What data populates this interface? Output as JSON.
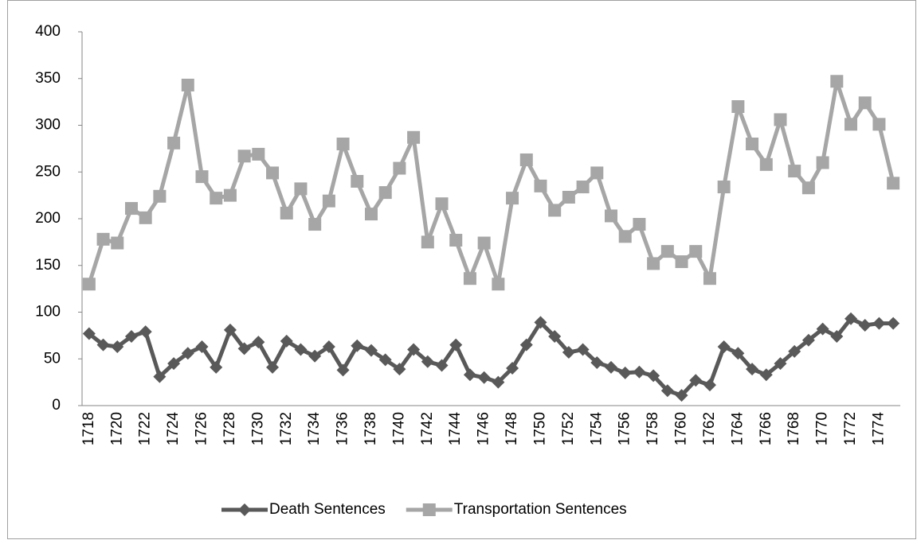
{
  "chart_data": {
    "type": "line",
    "categories": [
      1718,
      null,
      1720,
      null,
      1722,
      null,
      1724,
      null,
      1726,
      null,
      1728,
      null,
      1730,
      null,
      1732,
      null,
      1734,
      null,
      1736,
      null,
      1738,
      null,
      1740,
      null,
      1742,
      null,
      1744,
      null,
      1746,
      null,
      1748,
      null,
      1750,
      null,
      1752,
      null,
      1754,
      null,
      1756,
      null,
      1758,
      null,
      1760,
      null,
      1762,
      null,
      1764,
      null,
      1766,
      null,
      1768,
      null,
      1770,
      null,
      1772,
      null,
      1774,
      null
    ],
    "series": [
      {
        "name": "Death Sentences",
        "color": "#595959",
        "marker": "diamond",
        "values": [
          77,
          65,
          63,
          74,
          79,
          31,
          45,
          56,
          63,
          41,
          81,
          61,
          68,
          41,
          69,
          60,
          53,
          63,
          38,
          64,
          59,
          49,
          39,
          60,
          47,
          43,
          65,
          33,
          30,
          25,
          40,
          65,
          89,
          74,
          57,
          60,
          46,
          41,
          35,
          36,
          32,
          16,
          11,
          27,
          22,
          63,
          56,
          39,
          33,
          45,
          58,
          70,
          82,
          74,
          93,
          86,
          88,
          88
        ]
      },
      {
        "name": "Transportation Sentences",
        "color": "#a6a6a6",
        "marker": "square",
        "values": [
          130,
          178,
          174,
          211,
          201,
          224,
          281,
          343,
          245,
          222,
          225,
          267,
          269,
          249,
          206,
          232,
          194,
          219,
          280,
          240,
          205,
          228,
          254,
          287,
          175,
          216,
          177,
          136,
          174,
          130,
          222,
          263,
          235,
          209,
          223,
          234,
          249,
          203,
          181,
          194,
          152,
          165,
          154,
          165,
          136,
          234,
          320,
          280,
          258,
          306,
          251,
          233,
          260,
          347,
          301,
          324,
          301,
          238
        ]
      }
    ],
    "ylim": [
      0,
      400
    ],
    "yticks": [
      0,
      50,
      100,
      150,
      200,
      250,
      300,
      350,
      400
    ],
    "grid": false,
    "legend": "bottom"
  }
}
